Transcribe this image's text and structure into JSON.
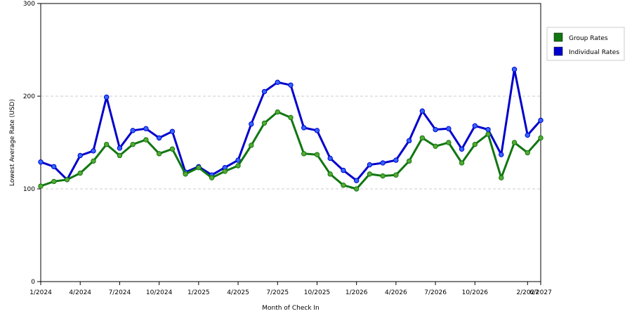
{
  "chart_data": {
    "type": "line",
    "xlabel": "Month of Check In",
    "ylabel": "Lowest Average Rate (USD)",
    "ylim": [
      0,
      300
    ],
    "yticks": [
      "0",
      "100",
      "200",
      "300"
    ],
    "ytick_values": [
      0,
      100,
      200,
      300
    ],
    "grid": "horizontal dashed at 100 and 200",
    "legend_position": "right",
    "xticks": [
      {
        "label": "1/2024",
        "index": 0
      },
      {
        "label": "4/2024",
        "index": 3
      },
      {
        "label": "7/2024",
        "index": 6
      },
      {
        "label": "10/2024",
        "index": 9
      },
      {
        "label": "1/2025",
        "index": 12
      },
      {
        "label": "4/2025",
        "index": 15
      },
      {
        "label": "7/2025",
        "index": 18
      },
      {
        "label": "10/2025",
        "index": 21
      },
      {
        "label": "1/2026",
        "index": 24
      },
      {
        "label": "4/2026",
        "index": 27
      },
      {
        "label": "7/2026",
        "index": 30
      },
      {
        "label": "10/2026",
        "index": 33
      },
      {
        "label": "2/2027",
        "index": 37
      },
      {
        "label": "6/2027",
        "index": 38
      }
    ],
    "series": [
      {
        "name": "Individual Rates",
        "color": "#0000cc",
        "marker_color": "#3366ff",
        "values": [
          129,
          124,
          110,
          136,
          141,
          199,
          144,
          163,
          165,
          155,
          162,
          118,
          124,
          115,
          123,
          131,
          170,
          205,
          215,
          212,
          166,
          163,
          133,
          120,
          109,
          126,
          128,
          131,
          152,
          184,
          164,
          165,
          143,
          168,
          164,
          137,
          229,
          158,
          174
        ]
      },
      {
        "name": "Group Rates",
        "color": "#117711",
        "marker_color": "#55aa33",
        "values": [
          103,
          108,
          110,
          117,
          130,
          148,
          136,
          148,
          153,
          138,
          143,
          116,
          123,
          112,
          119,
          125,
          147,
          171,
          183,
          177,
          138,
          137,
          116,
          104,
          100,
          116,
          114,
          115,
          130,
          155,
          146,
          150,
          128,
          148,
          159,
          112,
          150,
          139,
          155
        ]
      }
    ]
  },
  "legend": {
    "items": [
      {
        "label": "Group Rates",
        "color": "#117711"
      },
      {
        "label": "Individual Rates",
        "color": "#0000cc"
      }
    ]
  }
}
